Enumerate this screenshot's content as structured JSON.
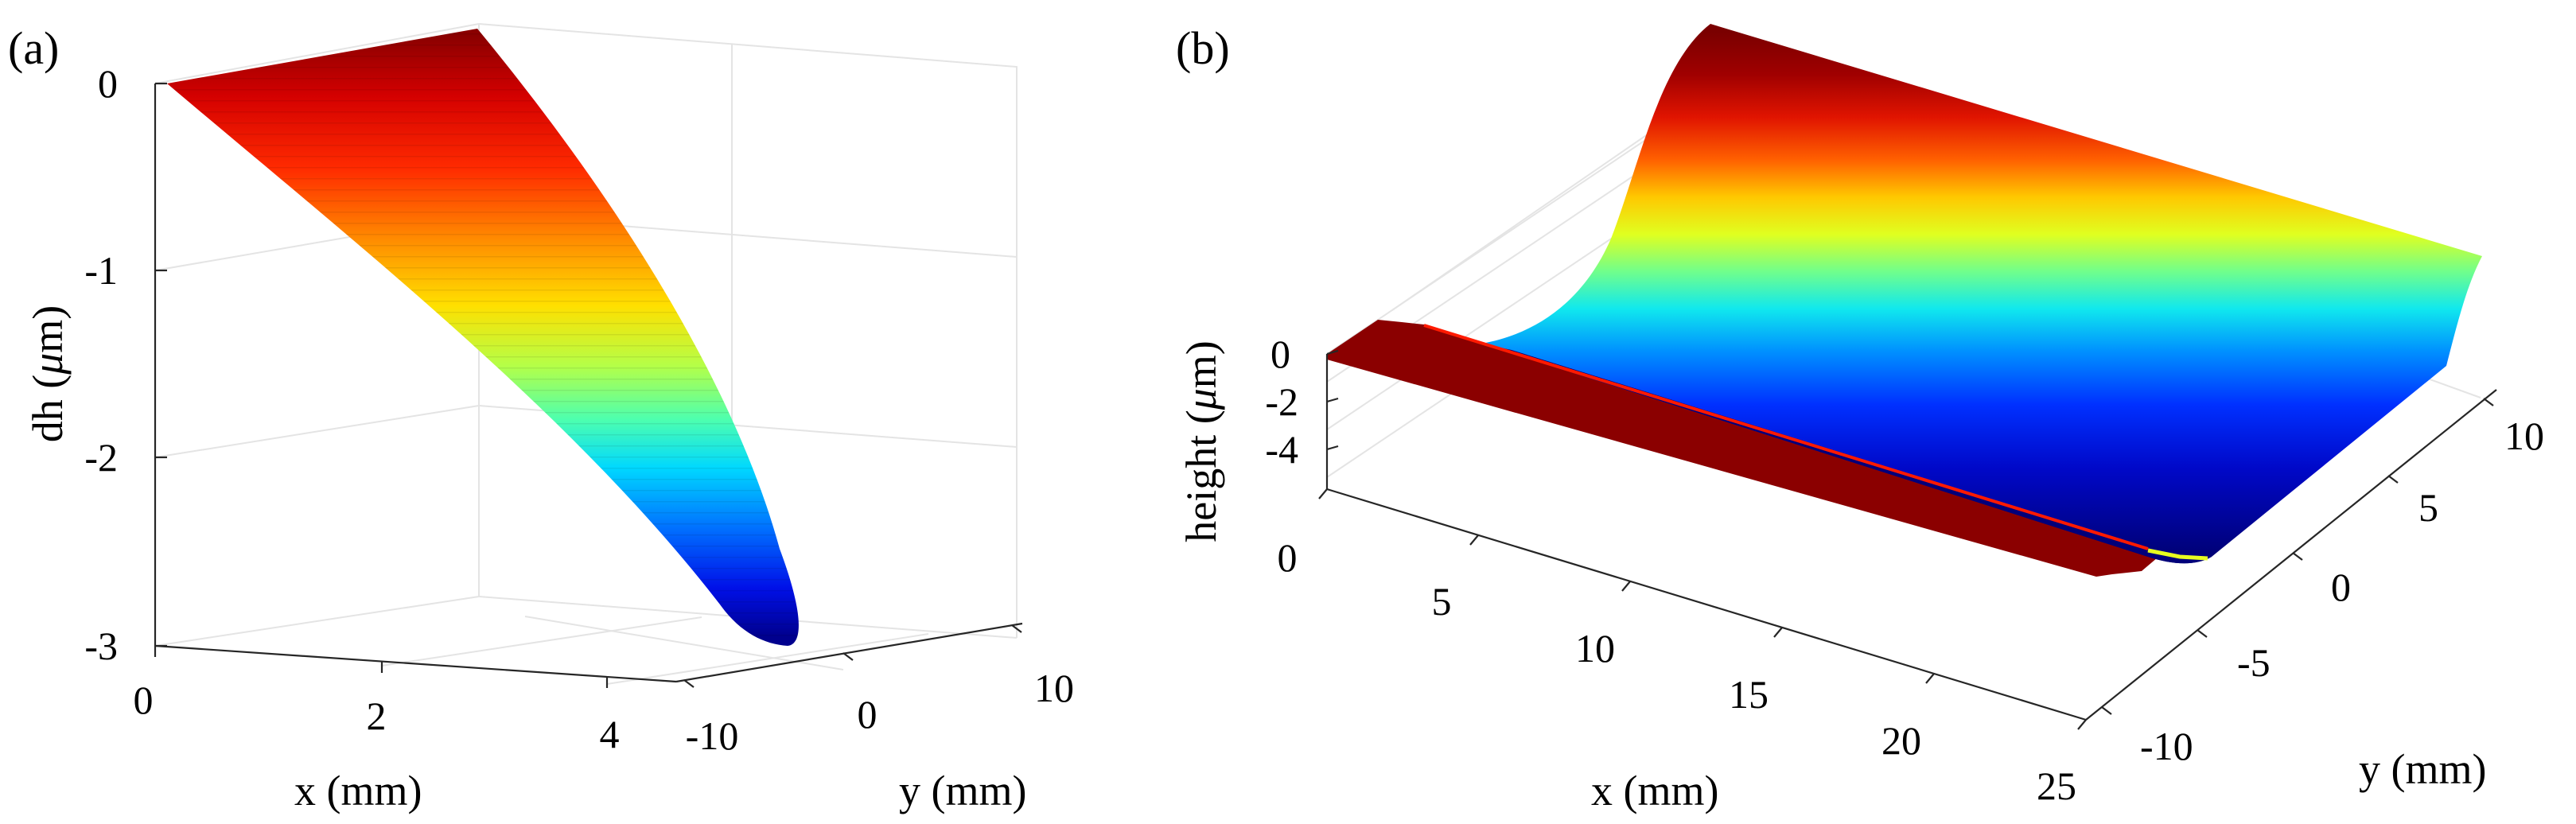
{
  "chart_data": [
    {
      "type": "surface",
      "panel_label": "(a)",
      "xlabel": "x (mm)",
      "ylabel": "y (mm)",
      "zlabel_prefix": "dh (",
      "zlabel_mu": "μ",
      "zlabel_suffix": "m)",
      "x_ticks": [
        "0",
        "2",
        "4"
      ],
      "y_ticks": [
        "-10",
        "0",
        "10"
      ],
      "z_ticks": [
        "0",
        "-1",
        "-2",
        "-3"
      ],
      "xlim": [
        0,
        4.5
      ],
      "ylim": [
        -10,
        10
      ],
      "zlim": [
        -3,
        0
      ],
      "colormap": "jet",
      "surface": "dh = -0.15 * x^2, independent of y",
      "dh_at_x": [
        {
          "x": 0,
          "dh": 0
        },
        {
          "x": 1,
          "dh": -0.15
        },
        {
          "x": 2,
          "dh": -0.6
        },
        {
          "x": 3,
          "dh": -1.35
        },
        {
          "x": 4,
          "dh": -2.4
        },
        {
          "x": 4.5,
          "dh": -3.0
        }
      ]
    },
    {
      "type": "surface",
      "panel_label": "(b)",
      "xlabel": "x (mm)",
      "ylabel": "y (mm)",
      "zlabel_prefix": "height (",
      "zlabel_mu": "μ",
      "zlabel_suffix": "m)",
      "x_ticks": [
        "0",
        "5",
        "10",
        "15",
        "20",
        "25"
      ],
      "y_ticks": [
        "-10",
        "-5",
        "0",
        "5",
        "10"
      ],
      "z_ticks": [
        "0",
        "-2",
        "-4"
      ],
      "xlim": [
        0,
        25
      ],
      "ylim": [
        -12,
        12
      ],
      "zlim": [
        -5,
        0
      ],
      "colormap": "jet",
      "surface": "trench profile along y, uniform along x",
      "height_at_y": [
        {
          "y": -12,
          "h": 0
        },
        {
          "y": -10,
          "h": 0
        },
        {
          "y": -9,
          "h": -4.8
        },
        {
          "y": -5,
          "h": -4.9
        },
        {
          "y": 0,
          "h": -4.0
        },
        {
          "y": 3,
          "h": -2.5
        },
        {
          "y": 6,
          "h": -1.0
        },
        {
          "y": 9,
          "h": -0.1
        },
        {
          "y": 12,
          "h": 0
        }
      ]
    }
  ]
}
